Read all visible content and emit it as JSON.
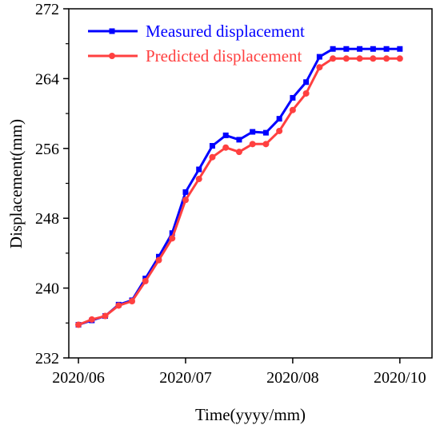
{
  "chart_data": {
    "type": "line",
    "xlabel": "Time(yyyy/mm)",
    "ylabel": "Displacement(mm)",
    "ylim": [
      232,
      272
    ],
    "yticks": [
      232,
      240,
      248,
      256,
      264,
      272
    ],
    "xticks": [
      {
        "label": "2020/06",
        "value": 1
      },
      {
        "label": "2020/07",
        "value": 5
      },
      {
        "label": "2020/08",
        "value": 9
      },
      {
        "label": "2020/10",
        "value": 13
      }
    ],
    "xlim": [
      0.64,
      14.2
    ],
    "x": [
      1,
      1.5,
      2,
      2.5,
      3,
      3.5,
      4,
      4.5,
      5,
      5.5,
      6,
      6.5,
      7,
      7.5,
      8,
      8.5,
      9,
      9.5,
      10,
      10.5,
      11,
      11.5,
      12,
      12.5,
      13
    ],
    "series": [
      {
        "name": "Measured displacement",
        "color": "#0000ff",
        "marker": "square",
        "values": [
          235.8,
          236.3,
          236.8,
          238.1,
          238.6,
          241.1,
          243.6,
          246.3,
          251.0,
          253.6,
          256.3,
          257.5,
          257.0,
          257.9,
          257.8,
          259.4,
          261.8,
          263.6,
          266.5,
          267.4,
          267.4,
          267.4,
          267.4,
          267.4,
          267.4
        ]
      },
      {
        "name": "Predicted displacement",
        "color": "#ff4040",
        "marker": "circle",
        "values": [
          235.8,
          236.4,
          236.8,
          238.0,
          238.5,
          240.8,
          243.2,
          245.7,
          250.1,
          252.5,
          255.0,
          256.1,
          255.6,
          256.5,
          256.5,
          258.0,
          260.4,
          262.3,
          265.3,
          266.3,
          266.3,
          266.3,
          266.3,
          266.3,
          266.3
        ]
      }
    ],
    "legend_position": "top-left",
    "grid": false
  }
}
